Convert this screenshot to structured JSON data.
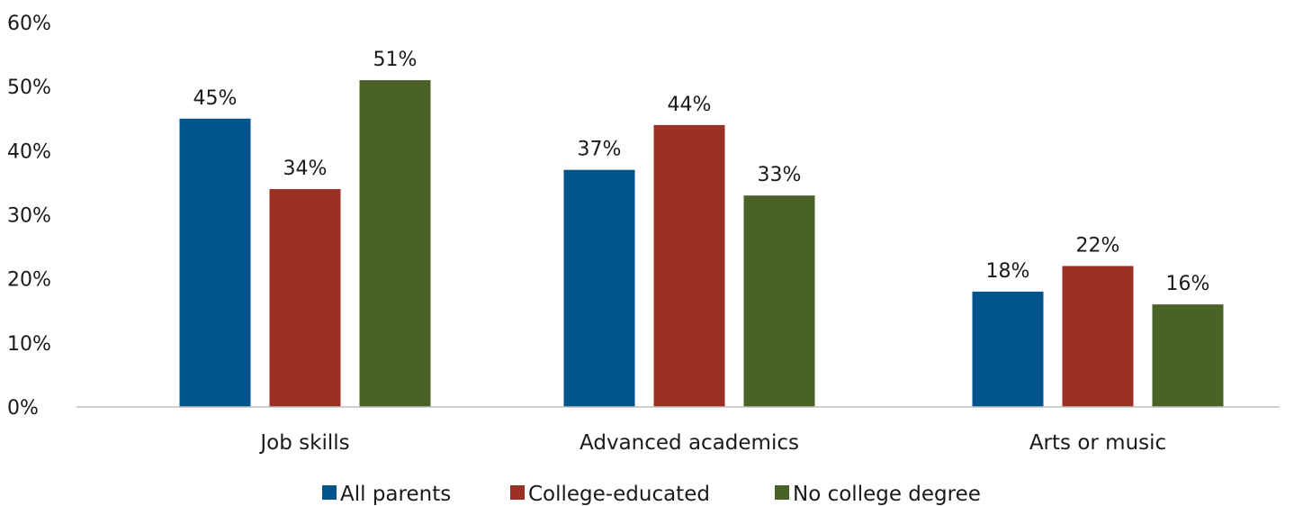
{
  "chart_data": {
    "type": "bar",
    "title": "",
    "xlabel": "",
    "ylabel": "",
    "categories": [
      "Job skills",
      "Advanced academics",
      "Arts or music"
    ],
    "series": [
      {
        "name": "All parents",
        "color": "#02558b",
        "values": [
          45,
          37,
          18
        ]
      },
      {
        "name": "College-educated",
        "color": "#9b3025",
        "values": [
          34,
          44,
          22
        ]
      },
      {
        "name": "No college degree",
        "color": "#4a6127",
        "values": [
          51,
          33,
          16
        ]
      }
    ],
    "value_format": "{v}%",
    "ylim": [
      0,
      60
    ],
    "yticks": [
      "0%",
      "10%",
      "20%",
      "30%",
      "40%",
      "50%",
      "60%"
    ],
    "grid": false,
    "legend": "bottom-center",
    "axis_color": "#bfbfbf"
  }
}
